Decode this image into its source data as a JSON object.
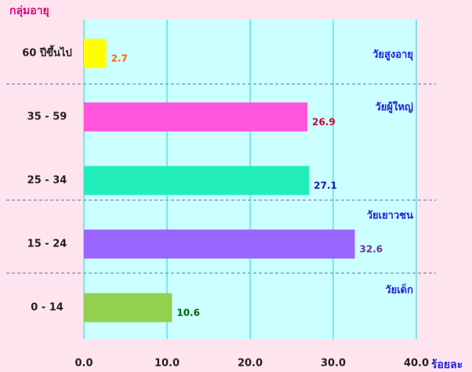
{
  "chart_data": {
    "type": "bar",
    "orientation": "horizontal",
    "y_axis_title": "กลุ่มอายุ",
    "x_axis_title": "ร้อยละ",
    "categories": [
      "60 ปีขึ้นไป",
      "35 - 59",
      "25 - 34",
      "15 - 24",
      "0 - 14"
    ],
    "values": [
      2.7,
      26.9,
      27.1,
      32.6,
      10.6
    ],
    "colors": [
      "#ffff00",
      "#ff55dd",
      "#22eebb",
      "#9966ff",
      "#92d050"
    ],
    "value_label_colors": [
      "#ff6600",
      "#cc0033",
      "#1a1aa0",
      "#7030a0",
      "#006600"
    ],
    "groups": [
      "วัยสูงอายุ",
      "วัยผู้ใหญ่",
      "วัยเยาวชน",
      "วัยเด็ก"
    ],
    "group_label_color": "#1f1fdd",
    "xlim": [
      0,
      40
    ],
    "xticks": [
      {
        "value": 0,
        "label": "0.0"
      },
      {
        "value": 10,
        "label": "10.0"
      },
      {
        "value": 20,
        "label": "20.0"
      },
      {
        "value": 30,
        "label": "30.0"
      },
      {
        "value": 40,
        "label": "40.0"
      }
    ],
    "grid": true
  }
}
